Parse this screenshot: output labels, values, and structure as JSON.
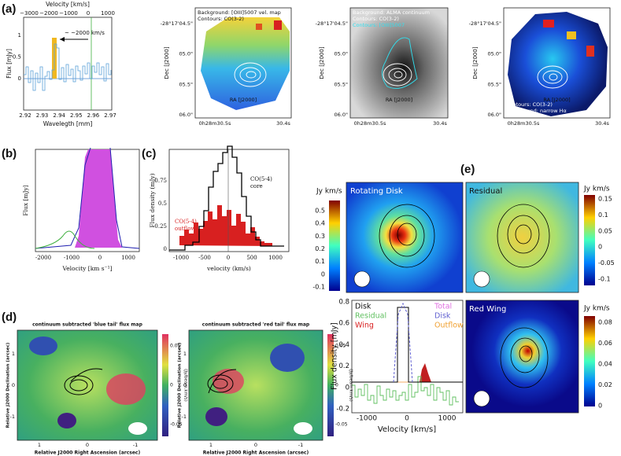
{
  "panel_labels": [
    "(a)",
    "(b)",
    "(c)",
    "(d)",
    "(e)"
  ],
  "a": {
    "spectrum": {
      "top_axis_label": "Velocity [km/s]",
      "top_ticks": [
        "−3000",
        "−2000",
        "−1000",
        "0",
        "1000"
      ],
      "y_label": "Flux [mJy]",
      "y_ticks": [
        "1",
        "0.5",
        "0"
      ],
      "x_ticks": [
        "2.92",
        "2.93",
        "2.94",
        "2.95",
        "2.96",
        "2.97"
      ],
      "x_label": "Wavelegth [mm]",
      "annotation": "~ ~2000 km/s"
    },
    "maps": [
      {
        "background": "Background: [OIII]5007 vel. map",
        "contours": "Contours: CO(3-2)"
      },
      {
        "background": "Background: ALMA continuum",
        "contours": "Contours: CO(3-2)",
        "contours2": "Contours: [OIII]5007"
      },
      {
        "contours": "Contours: CO(3-2)",
        "background": "Background: narrow Hα"
      }
    ],
    "map_axes": {
      "dec_ticks": [
        "-28°17'04.5\"",
        "05.0\"",
        "05.5\"",
        "06.0\""
      ],
      "dec_label": "Dec [J2000]",
      "ra_ticks": [
        "0h28m30.5s",
        "30.4s"
      ],
      "ra_label": "RA [J2000]"
    }
  },
  "b": {
    "y_label": "Flux [mJy]",
    "x_label": "Velocity [km s⁻¹]",
    "x_ticks": [
      "-2000",
      "-1000",
      "0",
      "1000"
    ]
  },
  "c": {
    "y_label": "Flux density (mJy)",
    "y_ticks": [
      "0.75",
      "0.5",
      "0.25",
      "0"
    ],
    "x_ticks": [
      "-1000",
      "-500",
      "0",
      "500",
      "1000"
    ],
    "x_label": "velocity (km/s)",
    "core_label": [
      "CO(5-4)",
      "core"
    ],
    "outflow_label": [
      "CO(5-4)",
      "outflow"
    ]
  },
  "d": {
    "titles": [
      "continuum subtracted 'blue tail' flux map",
      "continuum subtracted 'red tail' flux map"
    ],
    "y_label": "Relative J2000 Declination (arcsec)",
    "x_label": "Relative J2000 Right Ascension (arcsec)",
    "x_ticks": [
      "1",
      "0",
      "-1"
    ],
    "y_ticks": [
      "1",
      "0",
      "-1"
    ],
    "cbar_ticks": [
      "0.05",
      "0",
      "-0.05"
    ],
    "cbar_label": "(Jy/beam.km/s)"
  },
  "e": {
    "panels": [
      "Rotating Disk",
      "Residual",
      "Red Wing"
    ],
    "unit": "Jy km/s",
    "cbar_disk": [
      "0.5",
      "0.4",
      "0.3",
      "0.2",
      "0.1",
      "0",
      "-0.1"
    ],
    "cbar_residual": [
      "0.15",
      "0.1",
      "0.05",
      "0",
      "-0.05",
      "-0.1"
    ],
    "cbar_wing": [
      "0.08",
      "0.06",
      "0.04",
      "0.02",
      "0"
    ],
    "spectrum": {
      "y_ticks": [
        "0.8",
        "0.6",
        "0.4",
        "0.2",
        "0",
        "-0.2"
      ],
      "x_ticks": [
        "-1000",
        "0",
        "1000"
      ],
      "y_label": "Flux density [mJy]",
      "x_label": "Velocity [km/s]",
      "legend_left": [
        "Disk",
        "Residual",
        "Wing"
      ],
      "legend_right": [
        "Total",
        "Disk",
        "Outflow"
      ]
    }
  }
}
